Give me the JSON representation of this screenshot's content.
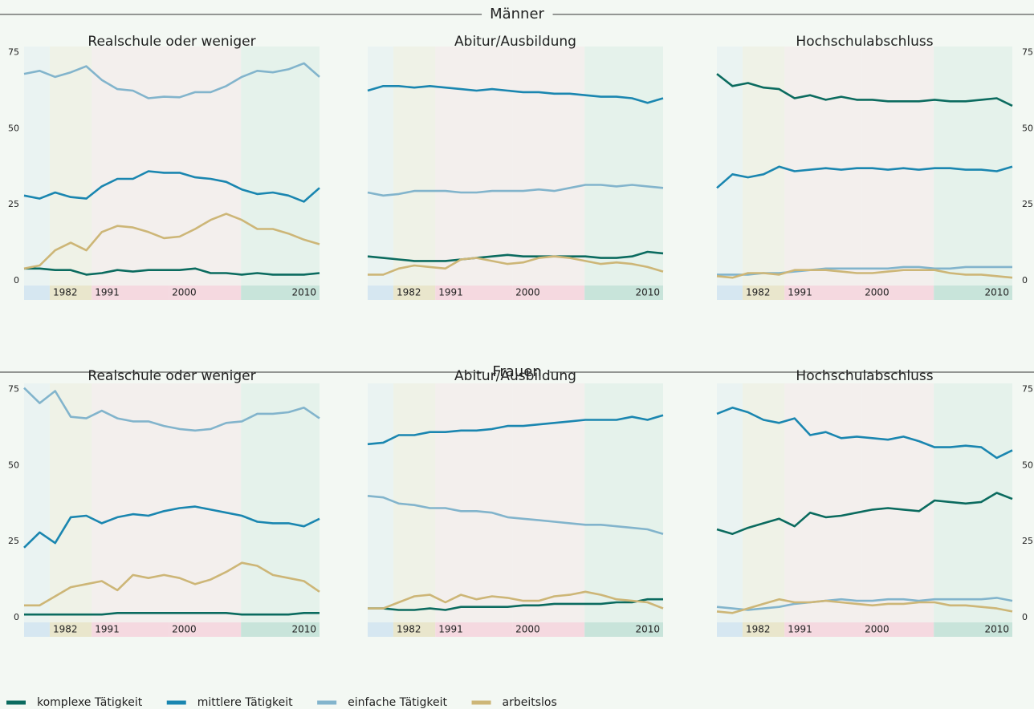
{
  "groups": [
    {
      "title": "Männer"
    },
    {
      "title": "Frauen"
    }
  ],
  "chart_data": [
    {
      "type": "line",
      "title": "Realschule oder weniger",
      "yaxis_side": "left",
      "x": [
        1975,
        1977,
        1979,
        1981,
        1983,
        1985,
        1987,
        1989,
        1991,
        1993,
        1995,
        1997,
        1999,
        2001,
        2003,
        2005,
        2007,
        2009,
        2011,
        2013
      ],
      "xlim": [
        1975,
        2013
      ],
      "ylim": [
        0,
        77
      ],
      "yticks": [
        0,
        25,
        50,
        75
      ],
      "bands": [
        {
          "start": 1975,
          "end": 1978.3,
          "color": "#d6e7f1"
        },
        {
          "start": 1978.3,
          "end": 1983.7,
          "color": "#e9e6cc",
          "label": "1982"
        },
        {
          "start": 1983.7,
          "end": 1993.6,
          "color": "#f5d9e0",
          "label": "1991"
        },
        {
          "start": 1993.6,
          "end": 2002.9,
          "color": "#f5d9e0",
          "label": "2000"
        },
        {
          "start": 2002.9,
          "end": 2013,
          "color": "#c8e4da",
          "label": "2010"
        }
      ],
      "series": [
        {
          "name": "komplexe Tätigkeit",
          "color": "#0b6b5f",
          "values": [
            4,
            4,
            3.5,
            3.5,
            2,
            2.5,
            3.5,
            3,
            3.5,
            3.5,
            3.5,
            4,
            2.5,
            2.5,
            2,
            2.5,
            2,
            2,
            2,
            2.5
          ]
        },
        {
          "name": "mittlere Tätigkeit",
          "color": "#1a86b0",
          "values": [
            28,
            27,
            29,
            27.5,
            27,
            31,
            33.5,
            33.5,
            36,
            35.5,
            35.5,
            34,
            33.5,
            32.5,
            30,
            28.5,
            29,
            28,
            26,
            30.5
          ]
        },
        {
          "name": "einfache Tätigkeit",
          "color": "#82b4cc",
          "values": [
            68,
            69,
            67,
            68.5,
            70.5,
            66,
            63,
            62.5,
            60,
            60.5,
            60.3,
            62,
            62,
            64,
            67,
            69,
            68.5,
            69.5,
            71.5,
            67
          ]
        },
        {
          "name": "arbeitslos",
          "color": "#cdb677",
          "values": [
            4,
            5,
            10,
            12.5,
            10,
            16,
            18,
            17.5,
            16,
            14,
            14.5,
            17,
            20,
            22,
            20,
            17,
            17,
            15.5,
            13.5,
            12
          ]
        }
      ]
    },
    {
      "type": "line",
      "title": "Abitur/Ausbildung",
      "x": [
        1975,
        1977,
        1979,
        1981,
        1983,
        1985,
        1987,
        1989,
        1991,
        1993,
        1995,
        1997,
        1999,
        2001,
        2003,
        2005,
        2007,
        2009,
        2011,
        2013
      ],
      "xlim": [
        1975,
        2013
      ],
      "ylim": [
        0,
        77
      ],
      "bands": [
        {
          "start": 1975,
          "end": 1978.3,
          "color": "#d6e7f1"
        },
        {
          "start": 1978.3,
          "end": 1983.7,
          "color": "#e9e6cc",
          "label": "1982"
        },
        {
          "start": 1983.7,
          "end": 1993.6,
          "color": "#f5d9e0",
          "label": "1991"
        },
        {
          "start": 1993.6,
          "end": 2002.9,
          "color": "#f5d9e0",
          "label": "2000"
        },
        {
          "start": 2002.9,
          "end": 2013,
          "color": "#c8e4da",
          "label": "2010"
        }
      ],
      "series": [
        {
          "name": "komplexe Tätigkeit",
          "color": "#0b6b5f",
          "values": [
            8,
            7.5,
            7,
            6.5,
            6.5,
            6.5,
            7,
            7.5,
            8,
            8.5,
            8,
            8,
            8,
            8,
            8,
            7.5,
            7.5,
            8,
            9.5,
            9
          ]
        },
        {
          "name": "mittlere Tätigkeit",
          "color": "#1a86b0",
          "values": [
            62.5,
            64,
            64,
            63.5,
            64,
            63.5,
            63,
            62.5,
            63,
            62.5,
            62,
            62,
            61.5,
            61.5,
            61,
            60.5,
            60.5,
            60,
            58.5,
            60
          ]
        },
        {
          "name": "einfache Tätigkeit",
          "color": "#82b4cc",
          "values": [
            29,
            28,
            28.5,
            29.5,
            29.5,
            29.5,
            29,
            29,
            29.5,
            29.5,
            29.5,
            30,
            29.5,
            30.5,
            31.5,
            31.5,
            31,
            31.5,
            31,
            30.5
          ]
        },
        {
          "name": "arbeitslos",
          "color": "#cdb677",
          "values": [
            2,
            2,
            4,
            5,
            4.5,
            4,
            7,
            7.5,
            6.5,
            5.5,
            6,
            7.5,
            8,
            7.5,
            6.5,
            5.5,
            6,
            5.5,
            4.5,
            3
          ]
        }
      ]
    },
    {
      "type": "line",
      "title": "Hochschulabschluss",
      "yaxis_side": "right",
      "x": [
        1975,
        1977,
        1979,
        1981,
        1983,
        1985,
        1987,
        1989,
        1991,
        1993,
        1995,
        1997,
        1999,
        2001,
        2003,
        2005,
        2007,
        2009,
        2011,
        2013
      ],
      "xlim": [
        1975,
        2013
      ],
      "ylim": [
        0,
        77
      ],
      "yticks": [
        0,
        25,
        50,
        75
      ],
      "bands": [
        {
          "start": 1975,
          "end": 1978.3,
          "color": "#d6e7f1"
        },
        {
          "start": 1978.3,
          "end": 1983.7,
          "color": "#e9e6cc",
          "label": "1982"
        },
        {
          "start": 1983.7,
          "end": 1993.6,
          "color": "#f5d9e0",
          "label": "1991"
        },
        {
          "start": 1993.6,
          "end": 2002.9,
          "color": "#f5d9e0",
          "label": "2000"
        },
        {
          "start": 2002.9,
          "end": 2013,
          "color": "#c8e4da",
          "label": "2010"
        }
      ],
      "series": [
        {
          "name": "komplexe Tätigkeit",
          "color": "#0b6b5f",
          "values": [
            68,
            64,
            65,
            63.5,
            63,
            60,
            61,
            59.5,
            60.5,
            59.5,
            59.5,
            59,
            59,
            59,
            59.5,
            59,
            59,
            59.5,
            60,
            57.5
          ]
        },
        {
          "name": "mittlere Tätigkeit",
          "color": "#1a86b0",
          "values": [
            30.5,
            35,
            34,
            35,
            37.5,
            36,
            36.5,
            37,
            36.5,
            37,
            37,
            36.5,
            37,
            36.5,
            37,
            37,
            36.5,
            36.5,
            36,
            37.5
          ]
        },
        {
          "name": "einfache Tätigkeit",
          "color": "#82b4cc",
          "values": [
            2,
            2,
            2,
            2.5,
            2.5,
            3,
            3.5,
            4,
            4,
            4,
            4,
            4,
            4.5,
            4.5,
            4,
            4,
            4.5,
            4.5,
            4.5,
            4.5
          ]
        },
        {
          "name": "arbeitslos",
          "color": "#cdb677",
          "values": [
            1.5,
            1,
            2.5,
            2.5,
            2,
            3.5,
            3.5,
            3.5,
            3,
            2.5,
            2.5,
            3,
            3.5,
            3.5,
            3.5,
            2.5,
            2,
            2,
            1.5,
            1
          ]
        }
      ]
    },
    {
      "type": "line",
      "title": "Realschule oder weniger",
      "yaxis_side": "left",
      "x": [
        1975,
        1977,
        1979,
        1981,
        1983,
        1985,
        1987,
        1989,
        1991,
        1993,
        1995,
        1997,
        1999,
        2001,
        2003,
        2005,
        2007,
        2009,
        2011,
        2013
      ],
      "xlim": [
        1975,
        2013
      ],
      "ylim": [
        0,
        77
      ],
      "yticks": [
        0,
        25,
        50,
        75
      ],
      "bands": [
        {
          "start": 1975,
          "end": 1978.3,
          "color": "#d6e7f1"
        },
        {
          "start": 1978.3,
          "end": 1983.7,
          "color": "#e9e6cc",
          "label": "1982"
        },
        {
          "start": 1983.7,
          "end": 1993.6,
          "color": "#f5d9e0",
          "label": "1991"
        },
        {
          "start": 1993.6,
          "end": 2002.9,
          "color": "#f5d9e0",
          "label": "2000"
        },
        {
          "start": 2002.9,
          "end": 2013,
          "color": "#c8e4da",
          "label": "2010"
        }
      ],
      "series": [
        {
          "name": "komplexe Tätigkeit",
          "color": "#0b6b5f",
          "values": [
            1,
            1,
            1,
            1,
            1,
            1,
            1.5,
            1.5,
            1.5,
            1.5,
            1.5,
            1.5,
            1.5,
            1.5,
            1,
            1,
            1,
            1,
            1.5,
            1.5
          ]
        },
        {
          "name": "mittlere Tätigkeit",
          "color": "#1a86b0",
          "values": [
            23,
            28,
            24.5,
            33,
            33.5,
            31,
            33,
            34,
            33.5,
            35,
            36,
            36.5,
            35.5,
            34.5,
            33.5,
            31.5,
            31,
            31,
            30,
            32.5
          ]
        },
        {
          "name": "einfache Tätigkeit",
          "color": "#82b4cc",
          "values": [
            75.5,
            70.5,
            74.5,
            66,
            65.5,
            68,
            65.5,
            64.5,
            64.5,
            63,
            62,
            61.5,
            62,
            64,
            64.5,
            67,
            67,
            67.5,
            69,
            65.5
          ]
        },
        {
          "name": "arbeitslos",
          "color": "#cdb677",
          "values": [
            4,
            4,
            7,
            10,
            11,
            12,
            9,
            14,
            13,
            14,
            13,
            11,
            12.5,
            15,
            18,
            17,
            14,
            13,
            12,
            8.5
          ]
        }
      ]
    },
    {
      "type": "line",
      "title": "Abitur/Ausbildung",
      "x": [
        1975,
        1977,
        1979,
        1981,
        1983,
        1985,
        1987,
        1989,
        1991,
        1993,
        1995,
        1997,
        1999,
        2001,
        2003,
        2005,
        2007,
        2009,
        2011,
        2013
      ],
      "xlim": [
        1975,
        2013
      ],
      "ylim": [
        0,
        77
      ],
      "bands": [
        {
          "start": 1975,
          "end": 1978.3,
          "color": "#d6e7f1"
        },
        {
          "start": 1978.3,
          "end": 1983.7,
          "color": "#e9e6cc",
          "label": "1982"
        },
        {
          "start": 1983.7,
          "end": 1993.6,
          "color": "#f5d9e0",
          "label": "1991"
        },
        {
          "start": 1993.6,
          "end": 2002.9,
          "color": "#f5d9e0",
          "label": "2000"
        },
        {
          "start": 2002.9,
          "end": 2013,
          "color": "#c8e4da",
          "label": "2010"
        }
      ],
      "series": [
        {
          "name": "komplexe Tätigkeit",
          "color": "#0b6b5f",
          "values": [
            3,
            3,
            2.5,
            2.5,
            3,
            2.5,
            3.5,
            3.5,
            3.5,
            3.5,
            4,
            4,
            4.5,
            4.5,
            4.5,
            4.5,
            5,
            5,
            6,
            6
          ]
        },
        {
          "name": "mittlere Tätigkeit",
          "color": "#1a86b0",
          "values": [
            57,
            57.5,
            60,
            60,
            61,
            61,
            61.5,
            61.5,
            62,
            63,
            63,
            63.5,
            64,
            64.5,
            65,
            65,
            65,
            66,
            65,
            66.5
          ]
        },
        {
          "name": "einfache Tätigkeit",
          "color": "#82b4cc",
          "values": [
            40,
            39.5,
            37.5,
            37,
            36,
            36,
            35,
            35,
            34.5,
            33,
            32.5,
            32,
            31.5,
            31,
            30.5,
            30.5,
            30,
            29.5,
            29,
            27.5
          ]
        },
        {
          "name": "arbeitslos",
          "color": "#cdb677",
          "values": [
            3,
            3,
            5,
            7,
            7.5,
            5,
            7.5,
            6,
            7,
            6.5,
            5.5,
            5.5,
            7,
            7.5,
            8.5,
            7.5,
            6,
            5.5,
            5,
            3
          ]
        }
      ]
    },
    {
      "type": "line",
      "title": "Hochschulabschluss",
      "yaxis_side": "right",
      "x": [
        1975,
        1977,
        1979,
        1981,
        1983,
        1985,
        1987,
        1989,
        1991,
        1993,
        1995,
        1997,
        1999,
        2001,
        2003,
        2005,
        2007,
        2009,
        2011,
        2013
      ],
      "xlim": [
        1975,
        2013
      ],
      "ylim": [
        0,
        77
      ],
      "yticks": [
        0,
        25,
        50,
        75
      ],
      "bands": [
        {
          "start": 1975,
          "end": 1978.3,
          "color": "#d6e7f1"
        },
        {
          "start": 1978.3,
          "end": 1983.7,
          "color": "#e9e6cc",
          "label": "1982"
        },
        {
          "start": 1983.7,
          "end": 1993.6,
          "color": "#f5d9e0",
          "label": "1991"
        },
        {
          "start": 1993.6,
          "end": 2002.9,
          "color": "#f5d9e0",
          "label": "2000"
        },
        {
          "start": 2002.9,
          "end": 2013,
          "color": "#c8e4da",
          "label": "2010"
        }
      ],
      "series": [
        {
          "name": "komplexe Tätigkeit",
          "color": "#0b6b5f",
          "values": [
            29,
            27.5,
            29.5,
            31,
            32.5,
            30,
            34.5,
            33,
            33.5,
            34.5,
            35.5,
            36,
            35.5,
            35,
            38.5,
            38,
            37.5,
            38,
            41,
            39
          ]
        },
        {
          "name": "mittlere Tätigkeit",
          "color": "#1a86b0",
          "values": [
            67,
            69,
            67.5,
            65,
            64,
            65.5,
            60,
            61,
            59,
            59.5,
            59,
            58.5,
            59.5,
            58,
            56,
            56,
            56.5,
            56,
            52.5,
            55
          ]
        },
        {
          "name": "einfache Tätigkeit",
          "color": "#82b4cc",
          "values": [
            3.5,
            3,
            2.5,
            3,
            3.5,
            4.5,
            5,
            5.5,
            6,
            5.5,
            5.5,
            6,
            6,
            5.5,
            6,
            6,
            6,
            6,
            6.5,
            5.5
          ]
        },
        {
          "name": "arbeitslos",
          "color": "#cdb677",
          "values": [
            2,
            1.5,
            3,
            4.5,
            6,
            5,
            5,
            5.5,
            5,
            4.5,
            4,
            4.5,
            4.5,
            5,
            5,
            4,
            4,
            3.5,
            3,
            2
          ]
        }
      ]
    }
  ]
}
